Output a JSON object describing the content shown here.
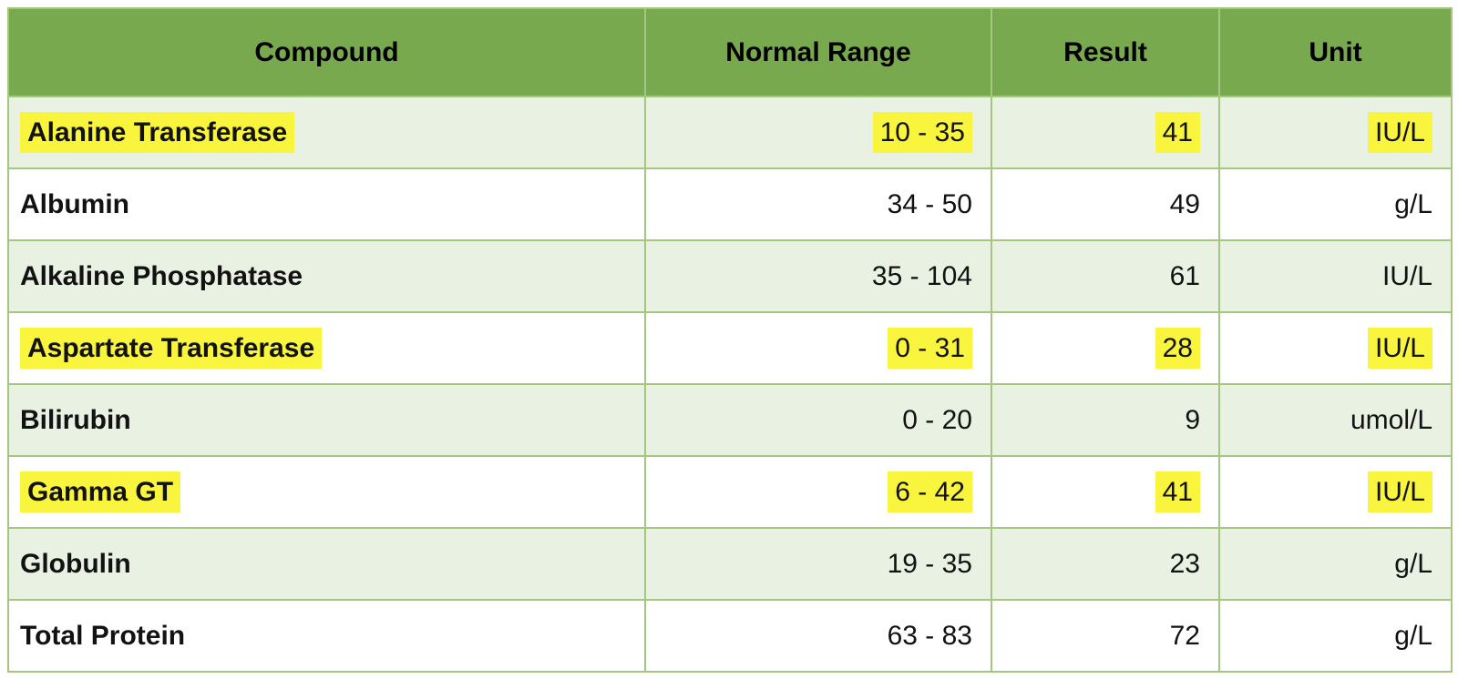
{
  "table": {
    "columns": [
      {
        "label": "Compound"
      },
      {
        "label": "Normal Range"
      },
      {
        "label": "Result"
      },
      {
        "label": "Unit"
      }
    ],
    "rows": [
      {
        "compound": "Alanine Transferase",
        "normal_range": "10 - 35",
        "result": "41",
        "unit": "IU/L",
        "highlighted": true
      },
      {
        "compound": "Albumin",
        "normal_range": "34 - 50",
        "result": "49",
        "unit": "g/L",
        "highlighted": false
      },
      {
        "compound": "Alkaline Phosphatase",
        "normal_range": "35 - 104",
        "result": "61",
        "unit": "IU/L",
        "highlighted": false
      },
      {
        "compound": "Aspartate Transferase",
        "normal_range": "0 - 31",
        "result": "28",
        "unit": "IU/L",
        "highlighted": true
      },
      {
        "compound": "Bilirubin",
        "normal_range": "0 - 20",
        "result": "9",
        "unit": "umol/L",
        "highlighted": false
      },
      {
        "compound": "Gamma GT",
        "normal_range": "6 - 42",
        "result": "41",
        "unit": "IU/L",
        "highlighted": true
      },
      {
        "compound": "Globulin",
        "normal_range": "19 - 35",
        "result": "23",
        "unit": "g/L",
        "highlighted": false
      },
      {
        "compound": "Total Protein",
        "normal_range": "63 - 83",
        "result": "72",
        "unit": "g/L",
        "highlighted": false
      }
    ],
    "colors": {
      "header_bg": "#79a94e",
      "row_bg": "#ffffff",
      "row_alt_bg": "#e9f1e2",
      "border": "#a4c681",
      "highlight": "#f9f53e",
      "text": "#121212"
    }
  }
}
